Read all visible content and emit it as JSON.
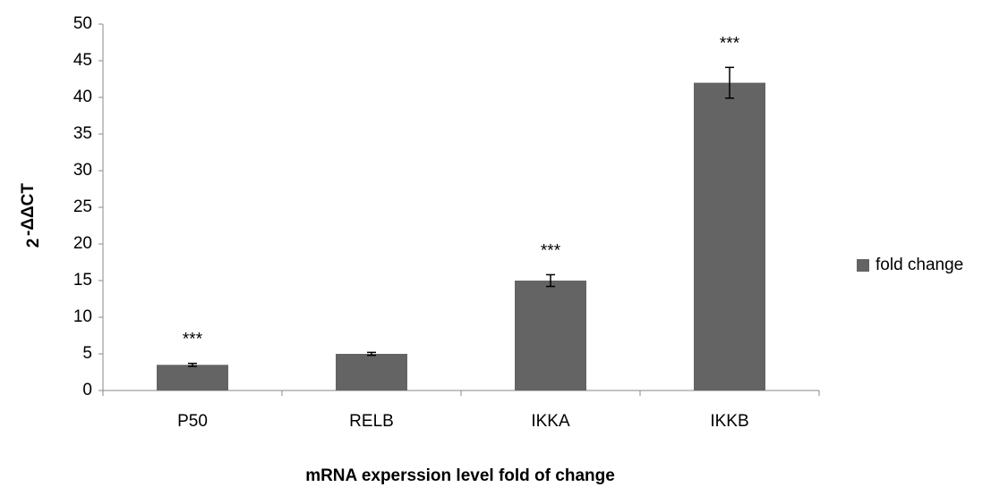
{
  "chart_data": {
    "type": "bar",
    "x_label": "mRNA experssion level fold of change",
    "y_label": {
      "base": "2",
      "exponent": "-ΔΔCT"
    },
    "categories": [
      "P50",
      "RELB",
      "IKKA",
      "IKKB"
    ],
    "series": [
      {
        "name": "fold change",
        "color": "#646464",
        "values": [
          3.5,
          5.0,
          15.0,
          42.0
        ],
        "errors": [
          0.2,
          0.2,
          0.8,
          2.1
        ]
      }
    ],
    "annotations": [
      "***",
      null,
      "***",
      "***"
    ],
    "ylim": [
      0,
      50
    ],
    "yticks": [
      0,
      5,
      10,
      15,
      20,
      25,
      30,
      35,
      40,
      45,
      50
    ],
    "grid": false,
    "legend": "right"
  }
}
